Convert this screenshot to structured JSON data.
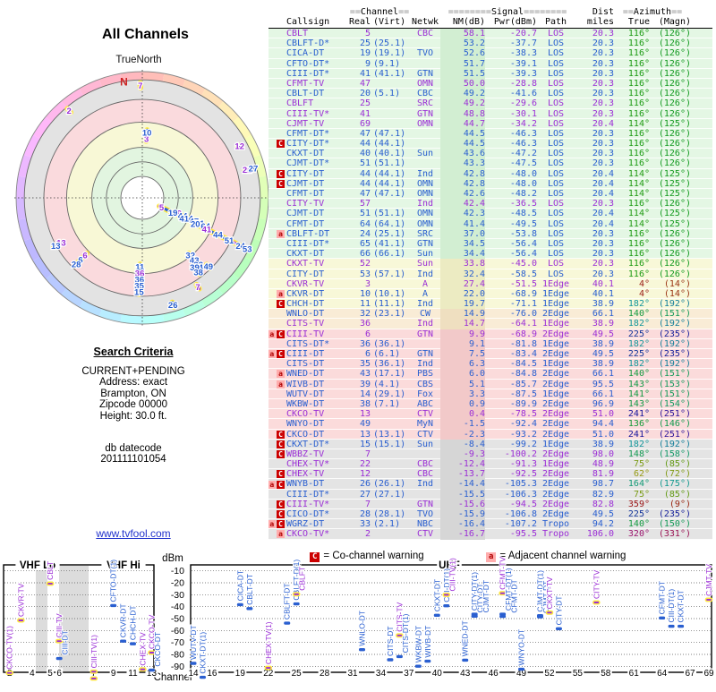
{
  "radar": {
    "title": "All Channels",
    "compass_label": "TrueNorth",
    "north_label": "N"
  },
  "search_criteria": {
    "heading": "Search Criteria",
    "lines": [
      "CURRENT+PENDING",
      "Address: exact",
      "Brampton, ON",
      "Zipcode 00000",
      "Height: 30.0 ft."
    ],
    "db_datecode_label": "db datecode",
    "db_datecode": "201111101054"
  },
  "link": "www.tvfool.com",
  "legend": {
    "co": {
      "symbol": "C",
      "text": "= Co-channel warning"
    },
    "adj": {
      "symbol": "a",
      "text": "= Adjacent channel warning"
    }
  },
  "table": {
    "groups": {
      "channel_pre": "==",
      "channel_word": "Channel",
      "channel_post": "==",
      "signal_pre": "========",
      "signal_word": "Signal",
      "signal_post": "========",
      "dist_word": "Dist",
      "azimuth_pre": "==",
      "azimuth_word": "Azimuth",
      "azimuth_post": "=="
    },
    "headers": {
      "callsign": "Callsign",
      "real": "Real",
      "virt": "(Virt)",
      "netwk": "Netwk",
      "nm": "NM(dB)",
      "pwr": "Pwr(dBm)",
      "path": "Path",
      "miles": "miles",
      "true": "True",
      "magn": "(Magn)"
    }
  },
  "stations": [
    {
      "cs": "CBLT",
      "real": 5,
      "virt": "",
      "net": "CBC",
      "nm": 58.1,
      "pwr": -20.7,
      "path": "LOS",
      "mi": 20.3,
      "azt": 116,
      "azm": 126,
      "t": "a",
      "band": "g",
      "warn": ""
    },
    {
      "cs": "CBLFT-D*",
      "real": 25,
      "virt": "(25.1)",
      "net": "",
      "nm": 53.2,
      "pwr": -37.7,
      "path": "LOS",
      "mi": 20.3,
      "azt": 116,
      "azm": 126,
      "t": "d",
      "band": "g",
      "warn": ""
    },
    {
      "cs": "CICA-DT",
      "real": 19,
      "virt": "(19.1)",
      "net": "TVO",
      "nm": 52.6,
      "pwr": -38.3,
      "path": "LOS",
      "mi": 20.3,
      "azt": 116,
      "azm": 126,
      "t": "d",
      "band": "g",
      "warn": ""
    },
    {
      "cs": "CFTO-DT*",
      "real": 9,
      "virt": "(9.1)",
      "net": "",
      "nm": 51.7,
      "pwr": -39.1,
      "path": "LOS",
      "mi": 20.3,
      "azt": 116,
      "azm": 126,
      "t": "d",
      "band": "g",
      "warn": ""
    },
    {
      "cs": "CIII-DT*",
      "real": 41,
      "virt": "(41.1)",
      "net": "GTN",
      "nm": 51.5,
      "pwr": -39.3,
      "path": "LOS",
      "mi": 20.3,
      "azt": 116,
      "azm": 126,
      "t": "d",
      "band": "g",
      "warn": ""
    },
    {
      "cs": "CFMT-TV",
      "real": 47,
      "virt": "",
      "net": "OMN",
      "nm": 50.0,
      "pwr": -28.8,
      "path": "LOS",
      "mi": 20.3,
      "azt": 116,
      "azm": 126,
      "t": "a",
      "band": "g",
      "warn": ""
    },
    {
      "cs": "CBLT-DT",
      "real": 20,
      "virt": "(5.1)",
      "net": "CBC",
      "nm": 49.2,
      "pwr": -41.6,
      "path": "LOS",
      "mi": 20.3,
      "azt": 116,
      "azm": 126,
      "t": "d",
      "band": "g",
      "warn": ""
    },
    {
      "cs": "CBLFT",
      "real": 25,
      "virt": "",
      "net": "SRC",
      "nm": 49.2,
      "pwr": -29.6,
      "path": "LOS",
      "mi": 20.3,
      "azt": 116,
      "azm": 126,
      "t": "a",
      "band": "g",
      "warn": ""
    },
    {
      "cs": "CIII-TV*",
      "real": 41,
      "virt": "",
      "net": "GTN",
      "nm": 48.8,
      "pwr": -30.1,
      "path": "LOS",
      "mi": 20.3,
      "azt": 116,
      "azm": 126,
      "t": "a",
      "band": "g",
      "warn": ""
    },
    {
      "cs": "CJMT-TV",
      "real": 69,
      "virt": "",
      "net": "OMN",
      "nm": 44.7,
      "pwr": -34.2,
      "path": "LOS",
      "mi": 20.4,
      "azt": 114,
      "azm": 125,
      "t": "a",
      "band": "g",
      "warn": ""
    },
    {
      "cs": "CFMT-DT*",
      "real": 47,
      "virt": "(47.1)",
      "net": "",
      "nm": 44.5,
      "pwr": -46.3,
      "path": "LOS",
      "mi": 20.3,
      "azt": 116,
      "azm": 126,
      "t": "d",
      "band": "g",
      "warn": ""
    },
    {
      "cs": "CITY-DT*",
      "real": 44,
      "virt": "(44.1)",
      "net": "",
      "nm": 44.5,
      "pwr": -46.3,
      "path": "LOS",
      "mi": 20.3,
      "azt": 116,
      "azm": 126,
      "t": "d",
      "band": "g",
      "warn": "C"
    },
    {
      "cs": "CKXT-DT",
      "real": 40,
      "virt": "(40.1)",
      "net": "Sun",
      "nm": 43.6,
      "pwr": -47.2,
      "path": "LOS",
      "mi": 20.3,
      "azt": 116,
      "azm": 126,
      "t": "d",
      "band": "g",
      "warn": ""
    },
    {
      "cs": "CJMT-DT*",
      "real": 51,
      "virt": "(51.1)",
      "net": "",
      "nm": 43.3,
      "pwr": -47.5,
      "path": "LOS",
      "mi": 20.3,
      "azt": 116,
      "azm": 126,
      "t": "d",
      "band": "g",
      "warn": ""
    },
    {
      "cs": "CITY-DT",
      "real": 44,
      "virt": "(44.1)",
      "net": "Ind",
      "nm": 42.8,
      "pwr": -48.0,
      "path": "LOS",
      "mi": 20.4,
      "azt": 114,
      "azm": 125,
      "t": "d",
      "band": "g",
      "warn": "C"
    },
    {
      "cs": "CJMT-DT",
      "real": 44,
      "virt": "(44.1)",
      "net": "OMN",
      "nm": 42.8,
      "pwr": -48.0,
      "path": "LOS",
      "mi": 20.4,
      "azt": 114,
      "azm": 125,
      "t": "d",
      "band": "g",
      "warn": "C"
    },
    {
      "cs": "CFMT-DT",
      "real": 47,
      "virt": "(47.1)",
      "net": "OMN",
      "nm": 42.6,
      "pwr": -48.2,
      "path": "LOS",
      "mi": 20.4,
      "azt": 114,
      "azm": 125,
      "t": "d",
      "band": "g",
      "warn": ""
    },
    {
      "cs": "CITY-TV",
      "real": 57,
      "virt": "",
      "net": "Ind",
      "nm": 42.4,
      "pwr": -36.5,
      "path": "LOS",
      "mi": 20.3,
      "azt": 116,
      "azm": 126,
      "t": "a",
      "band": "g",
      "warn": ""
    },
    {
      "cs": "CJMT-DT",
      "real": 51,
      "virt": "(51.1)",
      "net": "OMN",
      "nm": 42.3,
      "pwr": -48.5,
      "path": "LOS",
      "mi": 20.4,
      "azt": 114,
      "azm": 125,
      "t": "d",
      "band": "g",
      "warn": ""
    },
    {
      "cs": "CFMT-DT",
      "real": 64,
      "virt": "(64.1)",
      "net": "OMN",
      "nm": 41.4,
      "pwr": -49.5,
      "path": "LOS",
      "mi": 20.4,
      "azt": 114,
      "azm": 125,
      "t": "d",
      "band": "g",
      "warn": ""
    },
    {
      "cs": "CBLFT-DT",
      "real": 24,
      "virt": "(25.1)",
      "net": "SRC",
      "nm": 37.0,
      "pwr": -53.8,
      "path": "LOS",
      "mi": 20.3,
      "azt": 116,
      "azm": 126,
      "t": "d",
      "band": "g",
      "warn": "a"
    },
    {
      "cs": "CIII-DT*",
      "real": 65,
      "virt": "(41.1)",
      "net": "GTN",
      "nm": 34.5,
      "pwr": -56.4,
      "path": "LOS",
      "mi": 20.3,
      "azt": 116,
      "azm": 126,
      "t": "d",
      "band": "g",
      "warn": ""
    },
    {
      "cs": "CKXT-DT",
      "real": 66,
      "virt": "(66.1)",
      "net": "Sun",
      "nm": 34.4,
      "pwr": -56.4,
      "path": "LOS",
      "mi": 20.3,
      "azt": 116,
      "azm": 126,
      "t": "d",
      "band": "g",
      "warn": ""
    },
    {
      "cs": "CKXT-TV",
      "real": 52,
      "virt": "",
      "net": "Sun",
      "nm": 33.8,
      "pwr": -45.0,
      "path": "LOS",
      "mi": 20.3,
      "azt": 116,
      "azm": 126,
      "t": "a",
      "band": "y",
      "warn": ""
    },
    {
      "cs": "CITY-DT",
      "real": 53,
      "virt": "(57.1)",
      "net": "Ind",
      "nm": 32.4,
      "pwr": -58.5,
      "path": "LOS",
      "mi": 20.3,
      "azt": 116,
      "azm": 126,
      "t": "d",
      "band": "y",
      "warn": ""
    },
    {
      "cs": "CKVR-TV",
      "real": 3,
      "virt": "",
      "net": "A",
      "nm": 27.4,
      "pwr": -51.5,
      "path": "1Edge",
      "mi": 40.1,
      "azt": 4,
      "azm": 14,
      "t": "a",
      "band": "y",
      "warn": ""
    },
    {
      "cs": "CKVR-DT",
      "real": 10,
      "virt": "(10.1)",
      "net": "A",
      "nm": 22.0,
      "pwr": -68.9,
      "path": "1Edge",
      "mi": 40.1,
      "azt": 4,
      "azm": 14,
      "t": "d",
      "band": "y",
      "warn": "a"
    },
    {
      "cs": "CHCH-DT",
      "real": 11,
      "virt": "(11.1)",
      "net": "Ind",
      "nm": 19.7,
      "pwr": -71.1,
      "path": "1Edge",
      "mi": 38.9,
      "azt": 182,
      "azm": 192,
      "t": "d",
      "band": "y",
      "warn": "C"
    },
    {
      "cs": "WNLO-DT",
      "real": 32,
      "virt": "(23.1)",
      "net": "CW",
      "nm": 14.9,
      "pwr": -76.0,
      "path": "2Edge",
      "mi": 66.1,
      "azt": 140,
      "azm": 151,
      "t": "d",
      "band": "t",
      "warn": ""
    },
    {
      "cs": "CITS-TV",
      "real": 36,
      "virt": "",
      "net": "Ind",
      "nm": 14.7,
      "pwr": -64.1,
      "path": "1Edge",
      "mi": 38.9,
      "azt": 182,
      "azm": 192,
      "t": "a",
      "band": "t",
      "warn": ""
    },
    {
      "cs": "CIII-TV",
      "real": 6,
      "virt": "",
      "net": "GTN",
      "nm": 9.9,
      "pwr": -68.9,
      "path": "2Edge",
      "mi": 49.5,
      "azt": 225,
      "azm": 235,
      "t": "a",
      "band": "p",
      "warn": "aC"
    },
    {
      "cs": "CITS-DT*",
      "real": 36,
      "virt": "(36.1)",
      "net": "",
      "nm": 9.1,
      "pwr": -81.8,
      "path": "1Edge",
      "mi": 38.9,
      "azt": 182,
      "azm": 192,
      "t": "d",
      "band": "p",
      "warn": ""
    },
    {
      "cs": "CIII-DT",
      "real": 6,
      "virt": "(6.1)",
      "net": "GTN",
      "nm": 7.5,
      "pwr": -83.4,
      "path": "2Edge",
      "mi": 49.5,
      "azt": 225,
      "azm": 235,
      "t": "d",
      "band": "p",
      "warn": "aC"
    },
    {
      "cs": "CITS-DT",
      "real": 35,
      "virt": "(36.1)",
      "net": "Ind",
      "nm": 6.3,
      "pwr": -84.5,
      "path": "1Edge",
      "mi": 38.9,
      "azt": 182,
      "azm": 192,
      "t": "d",
      "band": "p",
      "warn": ""
    },
    {
      "cs": "WNED-DT",
      "real": 43,
      "virt": "(17.1)",
      "net": "PBS",
      "nm": 6.0,
      "pwr": -84.8,
      "path": "2Edge",
      "mi": 66.1,
      "azt": 140,
      "azm": 151,
      "t": "d",
      "band": "p",
      "warn": "a"
    },
    {
      "cs": "WIVB-DT",
      "real": 39,
      "virt": "(4.1)",
      "net": "CBS",
      "nm": 5.1,
      "pwr": -85.7,
      "path": "2Edge",
      "mi": 95.5,
      "azt": 143,
      "azm": 153,
      "t": "d",
      "band": "p",
      "warn": "a"
    },
    {
      "cs": "WUTV-DT",
      "real": 14,
      "virt": "(29.1)",
      "net": "Fox",
      "nm": 3.3,
      "pwr": -87.5,
      "path": "1Edge",
      "mi": 66.1,
      "azt": 141,
      "azm": 151,
      "t": "d",
      "band": "p",
      "warn": ""
    },
    {
      "cs": "WKBW-DT",
      "real": 38,
      "virt": "(7.1)",
      "net": "ABC",
      "nm": 0.9,
      "pwr": -89.9,
      "path": "2Edge",
      "mi": 96.9,
      "azt": 143,
      "azm": 154,
      "t": "d",
      "band": "p",
      "warn": ""
    },
    {
      "cs": "CKCO-TV",
      "real": 13,
      "virt": "",
      "net": "CTV",
      "nm": 0.4,
      "pwr": -78.5,
      "path": "2Edge",
      "mi": 51.0,
      "azt": 241,
      "azm": 251,
      "t": "a",
      "band": "p",
      "warn": ""
    },
    {
      "cs": "WNYO-DT",
      "real": 49,
      "virt": "",
      "net": "MyN",
      "nm": -1.5,
      "pwr": -92.4,
      "path": "2Edge",
      "mi": 94.4,
      "azt": 136,
      "azm": 146,
      "t": "d",
      "band": "p",
      "warn": ""
    },
    {
      "cs": "CKCO-DT",
      "real": 13,
      "virt": "(13.1)",
      "net": "CTV",
      "nm": -2.3,
      "pwr": -93.2,
      "path": "2Edge",
      "mi": 51.0,
      "azt": 241,
      "azm": 251,
      "t": "d",
      "band": "p",
      "warn": "C"
    },
    {
      "cs": "CKXT-DT*",
      "real": 15,
      "virt": "(15.1)",
      "net": "Sun",
      "nm": -8.4,
      "pwr": -99.2,
      "path": "1Edge",
      "mi": 38.9,
      "azt": 182,
      "azm": 192,
      "t": "d",
      "band": "x",
      "warn": "C"
    },
    {
      "cs": "WBBZ-TV",
      "real": 7,
      "virt": "",
      "net": "",
      "nm": -9.3,
      "pwr": -100.2,
      "path": "2Edge",
      "mi": 98.0,
      "azt": 148,
      "azm": 158,
      "t": "a",
      "band": "x",
      "warn": "C"
    },
    {
      "cs": "CHEX-TV*",
      "real": 22,
      "virt": "",
      "net": "CBC",
      "nm": -12.4,
      "pwr": -91.3,
      "path": "1Edge",
      "mi": 48.9,
      "azt": 75,
      "azm": 85,
      "t": "a",
      "band": "x",
      "warn": ""
    },
    {
      "cs": "CHEX-TV",
      "real": 12,
      "virt": "",
      "net": "CBC",
      "nm": -13.7,
      "pwr": -92.5,
      "path": "2Edge",
      "mi": 81.9,
      "azt": 62,
      "azm": 72,
      "t": "a",
      "band": "x",
      "warn": "C"
    },
    {
      "cs": "WNYB-DT",
      "real": 26,
      "virt": "(26.1)",
      "net": "Ind",
      "nm": -14.4,
      "pwr": -105.3,
      "path": "2Edge",
      "mi": 98.7,
      "azt": 164,
      "azm": 175,
      "t": "d",
      "band": "x",
      "warn": "aC"
    },
    {
      "cs": "CIII-DT*",
      "real": 27,
      "virt": "(27.1)",
      "net": "",
      "nm": -15.5,
      "pwr": -106.3,
      "path": "2Edge",
      "mi": 82.9,
      "azt": 75,
      "azm": 85,
      "t": "d",
      "band": "x",
      "warn": ""
    },
    {
      "cs": "CIII-TV*",
      "real": 7,
      "virt": "",
      "net": "GTN",
      "nm": -15.6,
      "pwr": -94.5,
      "path": "2Edge",
      "mi": 82.8,
      "azt": 359,
      "azm": 9,
      "t": "a",
      "band": "x",
      "warn": "C"
    },
    {
      "cs": "CICO-DT*",
      "real": 28,
      "virt": "(28.1)",
      "net": "TVO",
      "nm": -15.9,
      "pwr": -106.8,
      "path": "2Edge",
      "mi": 49.5,
      "azt": 225,
      "azm": 235,
      "t": "d",
      "band": "x",
      "warn": "C"
    },
    {
      "cs": "WGRZ-DT",
      "real": 33,
      "virt": "(2.1)",
      "net": "NBC",
      "nm": -16.4,
      "pwr": -107.2,
      "path": "Tropo",
      "mi": 94.2,
      "azt": 140,
      "azm": 150,
      "t": "d",
      "band": "x",
      "warn": "aC"
    },
    {
      "cs": "CKCO-TV*",
      "real": 2,
      "virt": "",
      "net": "CTV",
      "nm": -16.7,
      "pwr": -95.5,
      "path": "Tropo",
      "mi": 106.0,
      "azt": 320,
      "azm": 331,
      "t": "a",
      "band": "x",
      "warn": "a"
    }
  ],
  "chart_data": [
    {
      "type": "radar",
      "title": "All Channels",
      "compass_label": "TrueNorth",
      "north_label": "N",
      "angle_field": "azt (degrees true, 0 = North)",
      "radius_field": "nm (dB); strong signals near center, weak at rim",
      "radius_range": [
        58,
        -20
      ],
      "point_label_field": "real channel",
      "ring_zones": [
        "green = strong",
        "yellow = moderate",
        "pink = weak",
        "gray = very weak",
        "pastel rim hue = compass direction"
      ],
      "series_source": "stations"
    },
    {
      "type": "scatter",
      "xlabel": "Channel",
      "ylabel": "dBm",
      "ylim": [
        -95,
        -5
      ],
      "yticks": [
        -10,
        -20,
        -30,
        -40,
        -50,
        -60,
        -70,
        -80,
        -90
      ],
      "sections": [
        "VHF Lo",
        "VHF Hi",
        "UHF"
      ],
      "xticks_vhf": [
        2,
        4,
        5,
        6,
        7,
        9,
        11,
        13
      ],
      "xticks_uhf": [
        14,
        16,
        19,
        22,
        25,
        28,
        31,
        34,
        37,
        40,
        43,
        46,
        49,
        52,
        55,
        58,
        61,
        64,
        67,
        69
      ],
      "x_field": "real",
      "y_field": "pwr (dBm)",
      "point_label_field": "cs",
      "grid": true,
      "series_source": "stations"
    }
  ],
  "colors": {
    "analog": "#9b2fd6",
    "digital": "#2a5fd0",
    "marker_halo": "#ffe840",
    "co_warning_bg": "#cc0000",
    "adj_warning_bg": "#ffadad",
    "band_green": "#e4f7e4",
    "band_yellow": "#f8f8d8",
    "band_pink": "#fbdbdb",
    "band_gray": "#e4e4e4",
    "link": "#2233cc",
    "north": "#cc2222"
  }
}
